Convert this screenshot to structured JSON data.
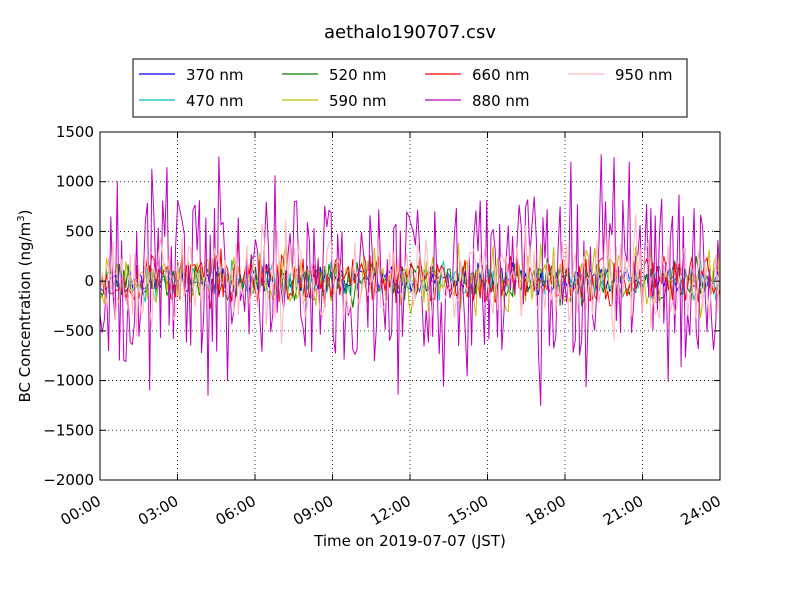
{
  "chart_data": {
    "type": "line",
    "title": "aethalo190707.csv",
    "xlabel": "Time on 2019-07-07 (JST)",
    "ylabel_main": "BC Concentration (ng/m",
    "ylabel_sup": "3",
    "ylabel_close": ")",
    "ylim": [
      -2000,
      1500
    ],
    "yticks": [
      -2000,
      -1500,
      -1000,
      -500,
      0,
      500,
      1000,
      1500
    ],
    "ytick_labels": [
      "−2000",
      "−1500",
      "−1000",
      "−500",
      "0",
      "500",
      "1000",
      "1500"
    ],
    "xlim_hours": [
      0,
      24
    ],
    "xticks_hours": [
      0,
      3,
      6,
      9,
      12,
      15,
      18,
      21,
      24
    ],
    "xtick_labels": [
      "00:00",
      "03:00",
      "06:00",
      "09:00",
      "12:00",
      "15:00",
      "18:00",
      "21:00",
      "24:00"
    ],
    "grid": true,
    "legend_position": "top-center",
    "legend_columns": 4,
    "series": [
      {
        "name": "370 nm",
        "color": "#0000ff",
        "amplitude": 120,
        "bias": 10,
        "seed": 11,
        "width": 1.0
      },
      {
        "name": "470 nm",
        "color": "#00bfbf",
        "amplitude": 140,
        "bias": 5,
        "seed": 23,
        "width": 1.0
      },
      {
        "name": "520 nm",
        "color": "#008000",
        "amplitude": 170,
        "bias": 5,
        "seed": 37,
        "width": 1.0
      },
      {
        "name": "590 nm",
        "color": "#bfbf00",
        "amplitude": 240,
        "bias": 20,
        "seed": 41,
        "width": 1.0
      },
      {
        "name": "660 nm",
        "color": "#ff0000",
        "amplitude": 230,
        "bias": 30,
        "seed": 53,
        "width": 1.0
      },
      {
        "name": "880 nm",
        "color": "#bf00bf",
        "amplitude": 820,
        "bias": 60,
        "seed": 67,
        "width": 1.0
      },
      {
        "name": "950 nm",
        "color": "#ffb6c1",
        "amplitude": 420,
        "bias": 20,
        "seed": 79,
        "width": 1.0
      }
    ],
    "samples_per_series": 288
  }
}
